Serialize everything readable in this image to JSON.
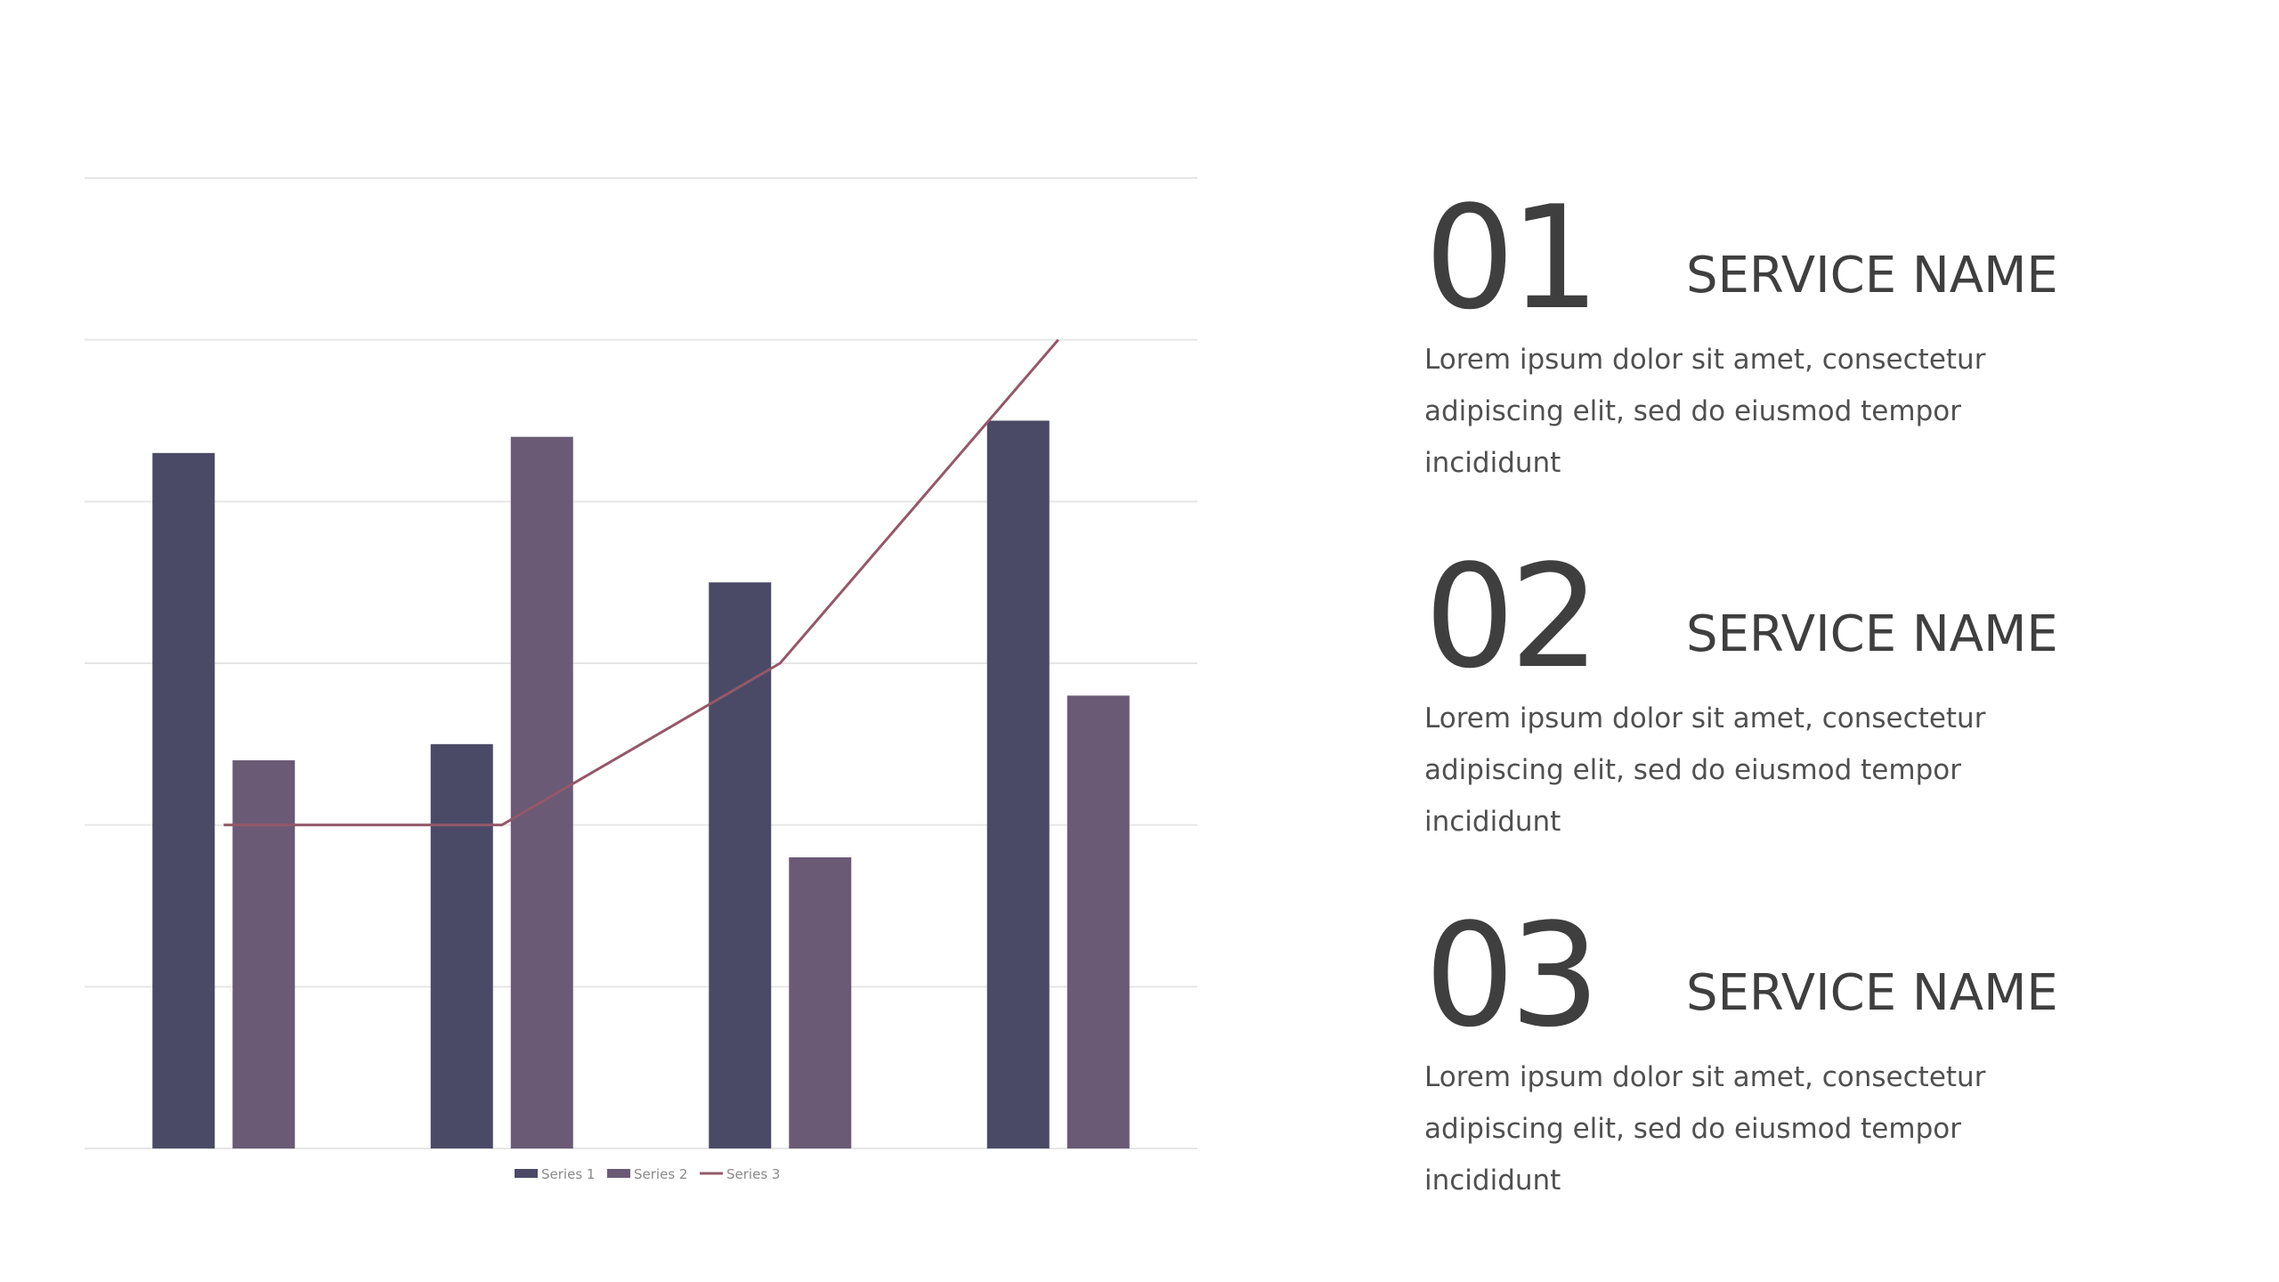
{
  "chart_data": {
    "type": "bar",
    "categories": [
      "",
      "",
      "",
      ""
    ],
    "ylim": [
      0,
      6
    ],
    "grid": true,
    "legend_position": "bottom",
    "series": [
      {
        "name": "Series 1",
        "kind": "bar",
        "color": "#4a4a66",
        "values": [
          4.3,
          2.5,
          3.5,
          4.5
        ]
      },
      {
        "name": "Series 2",
        "kind": "bar",
        "color": "#6a5a76",
        "values": [
          2.4,
          4.4,
          1.8,
          2.8
        ]
      },
      {
        "name": "Series 3",
        "kind": "line",
        "color": "#945868",
        "values": [
          2.0,
          2.0,
          3.0,
          5.0
        ]
      }
    ]
  },
  "services": [
    {
      "number": "01",
      "name": "SERVICE NAME",
      "description": "Lorem ipsum dolor sit amet, consectetur adipiscing elit, sed do eiusmod tempor incididunt"
    },
    {
      "number": "02",
      "name": "SERVICE NAME",
      "description": "Lorem ipsum dolor sit amet, consectetur adipiscing elit, sed do eiusmod tempor incididunt"
    },
    {
      "number": "03",
      "name": "SERVICE NAME",
      "description": "Lorem ipsum dolor sit amet, consectetur adipiscing elit, sed do eiusmod tempor incididunt"
    }
  ]
}
